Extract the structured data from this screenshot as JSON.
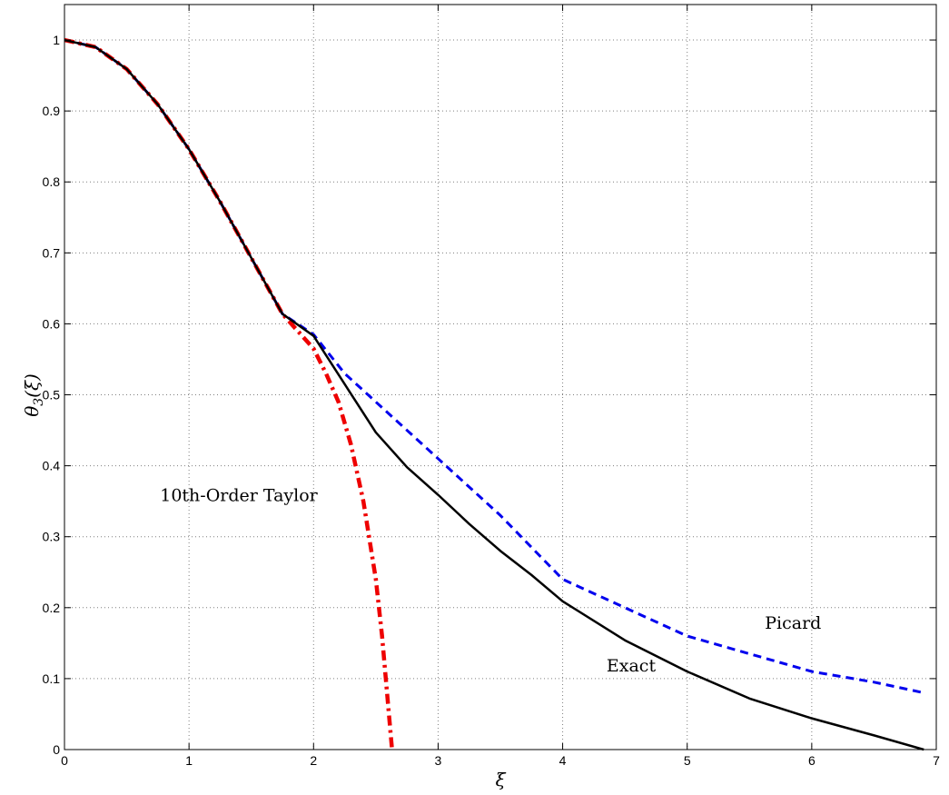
{
  "chart_data": {
    "type": "line",
    "title": "",
    "xlabel": "ξ",
    "ylabel": "θ3(ξ)",
    "ylabel_base": "θ",
    "ylabel_sub": "3",
    "ylabel_arg": "(ξ)",
    "xlim": [
      0,
      7
    ],
    "ylim": [
      0,
      1.05
    ],
    "x_ticks": [
      0,
      1,
      2,
      3,
      4,
      5,
      6,
      7
    ],
    "x_tick_labels": [
      "0",
      "1",
      "2",
      "3",
      "4",
      "5",
      "6",
      "7"
    ],
    "y_ticks": [
      0,
      0.1,
      0.2,
      0.3,
      0.4,
      0.5,
      0.6,
      0.7,
      0.8,
      0.9,
      1
    ],
    "y_tick_labels": [
      "0",
      "0.1",
      "0.2",
      "0.3",
      "0.4",
      "0.5",
      "0.6",
      "0.7",
      "0.8",
      "0.9",
      "1"
    ],
    "grid": true,
    "legend": "none",
    "series": [
      {
        "name": "Exact",
        "color": "#000000",
        "style": "solid",
        "x": [
          0,
          0.25,
          0.5,
          0.75,
          1.0,
          1.25,
          1.5,
          1.75,
          2.0,
          2.25,
          2.5,
          2.75,
          3.0,
          3.25,
          3.5,
          3.75,
          4.0,
          4.5,
          5.0,
          5.5,
          6.0,
          6.5,
          6.9
        ],
        "y": [
          1.0,
          0.99,
          0.959,
          0.909,
          0.846,
          0.772,
          0.693,
          0.614,
          0.583,
          0.515,
          0.447,
          0.398,
          0.359,
          0.318,
          0.28,
          0.246,
          0.209,
          0.154,
          0.11,
          0.072,
          0.044,
          0.02,
          0.0
        ]
      },
      {
        "name": "Picard",
        "color": "#0000ee",
        "style": "dashed",
        "x": [
          0,
          0.25,
          0.5,
          0.75,
          1.0,
          1.25,
          1.5,
          1.75,
          2.0,
          2.25,
          2.5,
          2.75,
          3.0,
          3.5,
          4.0,
          4.5,
          5.0,
          5.5,
          6.0,
          6.5,
          6.9
        ],
        "y": [
          1.0,
          0.99,
          0.959,
          0.909,
          0.846,
          0.772,
          0.693,
          0.614,
          0.585,
          0.53,
          0.49,
          0.45,
          0.41,
          0.33,
          0.24,
          0.2,
          0.16,
          0.135,
          0.11,
          0.095,
          0.08
        ]
      },
      {
        "name": "10th-Order Taylor",
        "color": "#ee0000",
        "style": "dashdot",
        "x": [
          0,
          0.25,
          0.5,
          0.75,
          1.0,
          1.25,
          1.5,
          1.75,
          2.0,
          2.1,
          2.2,
          2.3,
          2.4,
          2.5,
          2.55,
          2.6,
          2.63
        ],
        "y": [
          1.0,
          0.99,
          0.959,
          0.909,
          0.846,
          0.772,
          0.693,
          0.614,
          0.565,
          0.53,
          0.49,
          0.43,
          0.35,
          0.24,
          0.16,
          0.06,
          0.0
        ]
      }
    ],
    "annotations": [
      {
        "text": "10th-Order Taylor",
        "x": 1.4,
        "y": 0.35
      },
      {
        "text": "Picard",
        "x": 5.85,
        "y": 0.17
      },
      {
        "text": "Exact",
        "x": 4.55,
        "y": 0.11
      }
    ]
  }
}
